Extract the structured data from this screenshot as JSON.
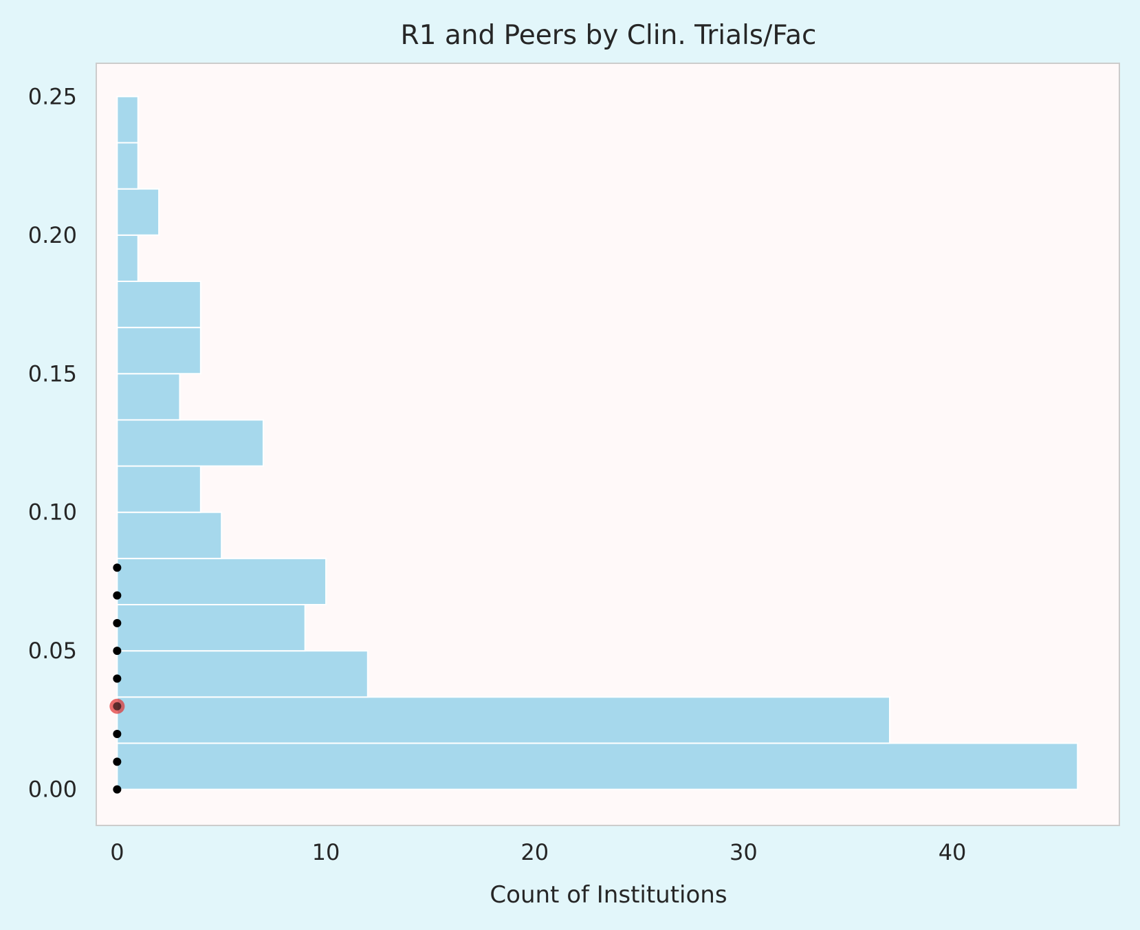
{
  "chart_data": {
    "type": "bar",
    "orientation": "horizontal",
    "title": "R1 and Peers by Clin. Trials/Fac",
    "xlabel": "Count of Institutions",
    "ylabel": "",
    "xlim": [
      -1,
      48
    ],
    "ylim": [
      -0.013,
      0.262
    ],
    "xticks": [
      "0",
      "10",
      "20",
      "30",
      "40"
    ],
    "yticks": [
      "0.00",
      "0.05",
      "0.10",
      "0.15",
      "0.20",
      "0.25"
    ],
    "grid": false,
    "legend": "none",
    "bins": [
      {
        "y0": 0.0,
        "y1": 0.01667,
        "count": 46
      },
      {
        "y0": 0.01667,
        "y1": 0.03333,
        "count": 37
      },
      {
        "y0": 0.03333,
        "y1": 0.05,
        "count": 12
      },
      {
        "y0": 0.05,
        "y1": 0.06667,
        "count": 9
      },
      {
        "y0": 0.06667,
        "y1": 0.08333,
        "count": 10
      },
      {
        "y0": 0.08333,
        "y1": 0.1,
        "count": 5
      },
      {
        "y0": 0.1,
        "y1": 0.11667,
        "count": 4
      },
      {
        "y0": 0.11667,
        "y1": 0.13333,
        "count": 7
      },
      {
        "y0": 0.13333,
        "y1": 0.15,
        "count": 3
      },
      {
        "y0": 0.15,
        "y1": 0.16667,
        "count": 4
      },
      {
        "y0": 0.16667,
        "y1": 0.18333,
        "count": 4
      },
      {
        "y0": 0.18333,
        "y1": 0.2,
        "count": 1
      },
      {
        "y0": 0.2,
        "y1": 0.21667,
        "count": 2
      },
      {
        "y0": 0.21667,
        "y1": 0.23333,
        "count": 1
      },
      {
        "y0": 0.23333,
        "y1": 0.25,
        "count": 1
      }
    ],
    "peer_points": [
      {
        "x": 0,
        "y": 0.0
      },
      {
        "x": 0,
        "y": 0.01
      },
      {
        "x": 0,
        "y": 0.02
      },
      {
        "x": 0,
        "y": 0.04
      },
      {
        "x": 0,
        "y": 0.05
      },
      {
        "x": 0,
        "y": 0.06
      },
      {
        "x": 0,
        "y": 0.07
      },
      {
        "x": 0,
        "y": 0.08
      }
    ],
    "highlight_point": {
      "x": 0,
      "y": 0.03
    },
    "colors": {
      "bar": "#a6d8ec",
      "plot_background": "#fff9f9",
      "figure_background": "#e2f6fa",
      "peer_point": "#000000",
      "highlight_point": "#e03030"
    }
  }
}
